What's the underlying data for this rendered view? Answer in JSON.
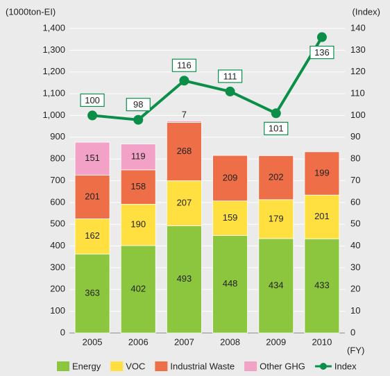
{
  "chart_data": {
    "type": "bar",
    "categories": [
      "2005",
      "2006",
      "2007",
      "2008",
      "2009",
      "2010"
    ],
    "y_label": "(1000ton-EI)",
    "y2_label": "(Index)",
    "x_label": "(FY)",
    "series": [
      {
        "name": "Energy",
        "color": "#8cc63f",
        "values": [
          363,
          402,
          493,
          448,
          434,
          433
        ]
      },
      {
        "name": "VOC",
        "color": "#ffe040",
        "values": [
          162,
          190,
          207,
          159,
          179,
          201
        ]
      },
      {
        "name": "Industrial Waste",
        "color": "#ee6e48",
        "values": [
          201,
          158,
          268,
          209,
          202,
          199
        ]
      },
      {
        "name": "Other GHG",
        "color": "#f2a2c6",
        "values": [
          151,
          119,
          7,
          null,
          null,
          null
        ]
      },
      {
        "name": "Index",
        "type": "line",
        "axis": "y2",
        "color": "#0b8f48",
        "values": [
          100,
          98,
          116,
          111,
          101,
          136
        ]
      }
    ],
    "ylim": [
      0,
      1400
    ],
    "yticks": [
      0,
      100,
      200,
      300,
      400,
      500,
      600,
      700,
      800,
      900,
      {
        "value": 1000,
        "label": "1,000"
      },
      {
        "value": 1100,
        "label": "1,100"
      },
      {
        "value": 1200,
        "label": "1,200"
      },
      {
        "value": 1300,
        "label": "1,300"
      },
      {
        "value": 1400,
        "label": "1,400"
      }
    ],
    "y2lim": [
      0,
      140
    ],
    "y2ticks": [
      0,
      10,
      20,
      30,
      40,
      50,
      60,
      70,
      80,
      90,
      100,
      110,
      120,
      130,
      140
    ],
    "grid": true,
    "legend": "bottom"
  }
}
